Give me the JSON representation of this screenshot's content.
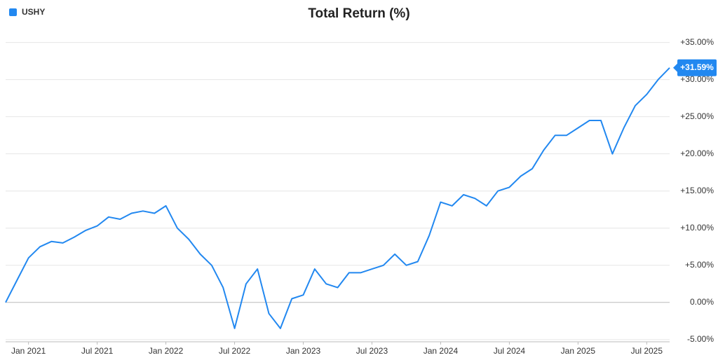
{
  "chart_data": {
    "type": "line",
    "title": "Total Return (%)",
    "x": [
      "2020-11",
      "2020-12",
      "2021-01",
      "2021-02",
      "2021-03",
      "2021-04",
      "2021-05",
      "2021-06",
      "2021-07",
      "2021-08",
      "2021-09",
      "2021-10",
      "2021-11",
      "2021-12",
      "2022-01",
      "2022-02",
      "2022-03",
      "2022-04",
      "2022-05",
      "2022-06",
      "2022-07",
      "2022-08",
      "2022-09",
      "2022-10",
      "2022-11",
      "2022-12",
      "2023-01",
      "2023-02",
      "2023-03",
      "2023-04",
      "2023-05",
      "2023-06",
      "2023-07",
      "2023-08",
      "2023-09",
      "2023-10",
      "2023-11",
      "2023-12",
      "2024-01",
      "2024-02",
      "2024-03",
      "2024-04",
      "2024-05",
      "2024-06",
      "2024-07",
      "2024-08",
      "2024-09",
      "2024-10",
      "2024-11",
      "2024-12",
      "2025-01",
      "2025-02",
      "2025-03",
      "2025-04",
      "2025-05",
      "2025-06",
      "2025-07",
      "2025-08",
      "2025-09"
    ],
    "series": [
      {
        "name": "USHY",
        "color": "#2288f0",
        "values": [
          0,
          3,
          6,
          7.5,
          8.2,
          8.0,
          8.8,
          9.7,
          10.3,
          11.5,
          11.2,
          12.0,
          12.3,
          12.0,
          13.0,
          10.0,
          8.5,
          6.5,
          5.0,
          2.0,
          -3.5,
          2.5,
          4.5,
          -1.5,
          -3.5,
          0.5,
          1.0,
          4.5,
          2.5,
          2.0,
          4.0,
          4.0,
          4.5,
          5.0,
          6.5,
          5.0,
          5.5,
          9.0,
          13.5,
          13.0,
          14.5,
          14.0,
          13.0,
          15.0,
          15.5,
          17.0,
          18.0,
          20.5,
          22.5,
          22.5,
          23.5,
          24.5,
          24.5,
          20.0,
          23.5,
          26.5,
          28.0,
          30.0,
          31.59
        ]
      }
    ],
    "annotations": [
      {
        "text": "+31.59%",
        "value": 31.59
      }
    ],
    "xlim": [
      "2020-11",
      "2025-09"
    ],
    "xticks": [
      {
        "value": "2021-01",
        "label": "Jan 2021"
      },
      {
        "value": "2021-07",
        "label": "Jul 2021"
      },
      {
        "value": "2022-01",
        "label": "Jan 2022"
      },
      {
        "value": "2022-07",
        "label": "Jul 2022"
      },
      {
        "value": "2023-01",
        "label": "Jan 2023"
      },
      {
        "value": "2023-07",
        "label": "Jul 2023"
      },
      {
        "value": "2024-01",
        "label": "Jan 2024"
      },
      {
        "value": "2024-07",
        "label": "Jul 2024"
      },
      {
        "value": "2025-01",
        "label": "Jan 2025"
      },
      {
        "value": "2025-07",
        "label": "Jul 2025"
      }
    ],
    "ylim": [
      -5.3,
      36
    ],
    "yticks": [
      {
        "value": -5,
        "label": "-5.00%"
      },
      {
        "value": 0,
        "label": "0.00%"
      },
      {
        "value": 5,
        "label": "+5.00%"
      },
      {
        "value": 10,
        "label": "+10.00%"
      },
      {
        "value": 15,
        "label": "+15.00%"
      },
      {
        "value": 20,
        "label": "+20.00%"
      },
      {
        "value": 25,
        "label": "+25.00%"
      },
      {
        "value": 30,
        "label": "+30.00%"
      },
      {
        "value": 35,
        "label": "+35.00%"
      }
    ],
    "grid": true
  }
}
